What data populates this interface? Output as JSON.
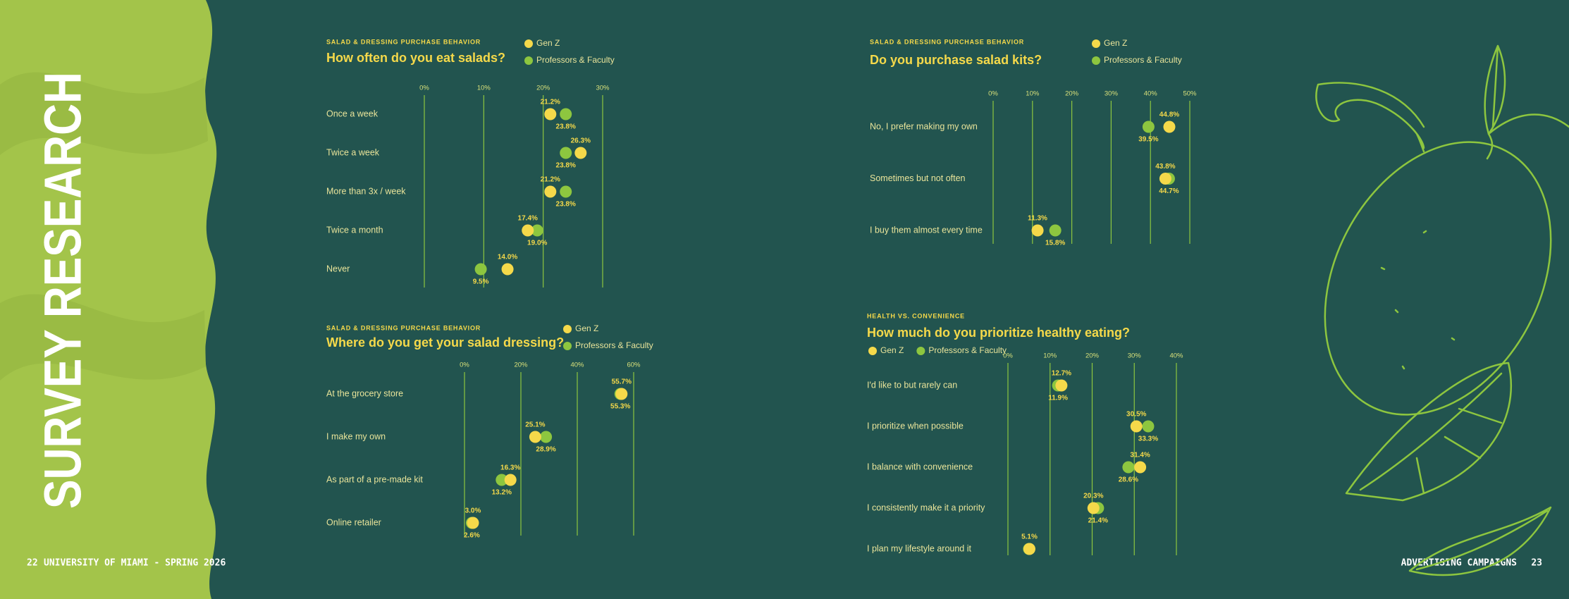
{
  "page": {
    "heading": "SURVEY RESEARCH",
    "left_number": "22",
    "left_footer": "UNIVERSITY OF MIAMI - SPRING 2026",
    "right_footer": "ADVERTISING CAMPAIGNS",
    "right_number": "23"
  },
  "chart_data": [
    {
      "type": "dot",
      "subtitle": "SALAD & DRESSING PURCHASE BEHAVIOR",
      "title": "How often do you eat salads?",
      "categories": [
        "Once a week",
        "Twice a week",
        "More than 3x / week",
        "Twice a month",
        "Never"
      ],
      "series": [
        {
          "name": "Gen Z",
          "color": "#f5d94a",
          "values": [
            21.2,
            26.3,
            21.2,
            17.4,
            14.0
          ],
          "value_labels": [
            "21.2%",
            "26.3%",
            "21.2%",
            "17.4%",
            "14.0%"
          ]
        },
        {
          "name": "Professors & Faculty",
          "color": "#8dc63f",
          "values": [
            23.8,
            23.8,
            23.8,
            19.0,
            9.5
          ],
          "value_labels": [
            "23.8%",
            "23.8%",
            "23.8%",
            "19.0%",
            "9.5%"
          ]
        }
      ],
      "xlim": [
        0,
        30
      ],
      "xticks": [
        {
          "value": 0,
          "label": "0%"
        },
        {
          "value": 10,
          "label": "10%"
        },
        {
          "value": 20,
          "label": "20%"
        },
        {
          "value": 30,
          "label": "30%"
        }
      ],
      "grid": true
    },
    {
      "type": "dot",
      "subtitle": "SALAD & DRESSING PURCHASE BEHAVIOR",
      "title": "Do you purchase salad kits?",
      "categories": [
        "No, I prefer making my own",
        "Sometimes but not often",
        "I buy them almost every time"
      ],
      "series": [
        {
          "name": "Gen Z",
          "color": "#f5d94a",
          "values": [
            44.8,
            43.8,
            11.3
          ],
          "value_labels": [
            "44.8%",
            "43.8%",
            "11.3%"
          ]
        },
        {
          "name": "Professors & Faculty",
          "color": "#8dc63f",
          "values": [
            39.5,
            44.7,
            15.8
          ],
          "value_labels": [
            "39.5%",
            "44.7%",
            "15.8%"
          ]
        }
      ],
      "xlim": [
        0,
        50
      ],
      "xticks": [
        {
          "value": 0,
          "label": "0%"
        },
        {
          "value": 10,
          "label": "10%"
        },
        {
          "value": 20,
          "label": "20%"
        },
        {
          "value": 30,
          "label": "30%"
        },
        {
          "value": 40,
          "label": "40%"
        },
        {
          "value": 50,
          "label": "50%"
        }
      ],
      "grid": true
    },
    {
      "type": "dot",
      "subtitle": "SALAD & DRESSING PURCHASE BEHAVIOR",
      "title": "Where do you get your salad dressing?",
      "categories": [
        "At the grocery store",
        "I make my own",
        "As part of a pre-made kit",
        "Online retailer"
      ],
      "series": [
        {
          "name": "Gen Z",
          "color": "#f5d94a",
          "values": [
            55.7,
            25.1,
            16.3,
            3.0
          ],
          "value_labels": [
            "55.7%",
            "25.1%",
            "16.3%",
            "3.0%"
          ]
        },
        {
          "name": "Professors & Faculty",
          "color": "#8dc63f",
          "values": [
            55.3,
            28.9,
            13.2,
            2.6
          ],
          "value_labels": [
            "55.3%",
            "28.9%",
            "13.2%",
            "2.6%"
          ]
        }
      ],
      "xlim": [
        0,
        60
      ],
      "xticks": [
        {
          "value": 0,
          "label": "0%"
        },
        {
          "value": 20,
          "label": "20%"
        },
        {
          "value": 40,
          "label": "40%"
        },
        {
          "value": 60,
          "label": "60%"
        }
      ],
      "grid": true
    },
    {
      "type": "dot",
      "subtitle": "HEALTH VS. CONVENIENCE",
      "title": "How much do you prioritize healthy eating?",
      "categories": [
        "I'd like to but rarely can",
        "I prioritize when possible",
        "I balance with convenience",
        "I consistently make it a priority",
        "I plan my lifestyle around it"
      ],
      "series": [
        {
          "name": "Gen Z",
          "color": "#f5d94a",
          "values": [
            12.7,
            30.5,
            31.4,
            20.3,
            5.1
          ],
          "value_labels": [
            "12.7%",
            "30.5%",
            "31.4%",
            "20.3%",
            "5.1%"
          ]
        },
        {
          "name": "Professors & Faculty",
          "color": "#8dc63f",
          "values": [
            11.9,
            33.3,
            28.6,
            21.4,
            5.0
          ],
          "value_labels": [
            "11.9%",
            "33.3%",
            "28.6%",
            "21.4%",
            null
          ]
        }
      ],
      "xlim": [
        0,
        40
      ],
      "xticks": [
        {
          "value": 0,
          "label": "0%"
        },
        {
          "value": 10,
          "label": "10%"
        },
        {
          "value": 20,
          "label": "20%"
        },
        {
          "value": 30,
          "label": "30%"
        },
        {
          "value": 40,
          "label": "40%"
        }
      ],
      "grid": true
    }
  ]
}
